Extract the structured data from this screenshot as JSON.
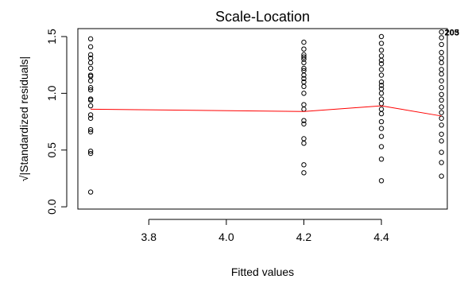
{
  "chart_data": {
    "type": "scatter",
    "title": "Scale-Location",
    "xlabel": "Fitted values",
    "ylabel": "√|Standardized residuals|",
    "xlim": [
      3.617,
      4.57
    ],
    "ylim": [
      -0.02,
      1.57
    ],
    "xticks": [
      "3.8",
      "4.0",
      "4.2",
      "4.4"
    ],
    "yticks": [
      "0.0",
      "0.5",
      "1.0",
      "1.5"
    ],
    "grid": false,
    "series": [
      {
        "x": [
          3.65,
          3.65,
          3.65,
          3.65,
          3.65,
          3.65,
          3.65,
          3.65,
          3.65,
          3.65,
          3.65,
          3.65,
          3.65,
          3.65,
          3.65,
          3.65,
          3.65,
          3.65,
          3.65,
          3.65,
          3.65,
          4.2,
          4.2,
          4.2,
          4.2,
          4.2,
          4.2,
          4.2,
          4.2,
          4.2,
          4.2,
          4.2,
          4.2,
          4.2,
          4.2,
          4.2,
          4.2,
          4.2,
          4.2,
          4.2,
          4.2,
          4.2,
          4.4,
          4.4,
          4.4,
          4.4,
          4.4,
          4.4,
          4.4,
          4.4,
          4.4,
          4.4,
          4.4,
          4.4,
          4.4,
          4.4,
          4.4,
          4.4,
          4.4,
          4.4,
          4.4,
          4.4,
          4.4,
          4.4,
          4.555,
          4.555,
          4.555,
          4.555,
          4.555,
          4.555,
          4.555,
          4.555,
          4.555,
          4.555,
          4.555,
          4.555,
          4.555,
          4.555,
          4.555,
          4.555,
          4.555,
          4.555,
          4.555,
          4.555,
          4.555
        ],
        "y": [
          1.48,
          1.41,
          1.34,
          1.31,
          1.27,
          1.22,
          1.16,
          1.15,
          1.11,
          1.05,
          1.03,
          0.95,
          0.94,
          0.89,
          0.81,
          0.78,
          0.68,
          0.66,
          0.49,
          0.47,
          0.13,
          1.45,
          1.39,
          1.34,
          1.3,
          1.27,
          1.2,
          1.16,
          1.1,
          1.06,
          1.0,
          0.9,
          0.86,
          0.76,
          0.73,
          0.6,
          0.56,
          0.37,
          0.3,
          1.32,
          1.22,
          1.13,
          1.5,
          1.44,
          1.38,
          1.33,
          1.26,
          1.21,
          1.16,
          1.1,
          1.04,
          1.0,
          0.95,
          0.91,
          0.86,
          0.82,
          0.75,
          0.69,
          0.62,
          0.53,
          0.42,
          0.23,
          1.29,
          1.07,
          1.54,
          1.49,
          1.43,
          1.36,
          1.31,
          1.27,
          1.21,
          1.17,
          1.11,
          1.05,
          0.99,
          0.94,
          0.88,
          0.83,
          0.78,
          0.72,
          0.64,
          0.58,
          0.48,
          0.39,
          0.27
        ]
      }
    ],
    "smooth_line": {
      "color": "#ff0000",
      "x": [
        3.65,
        4.2,
        4.4,
        4.555
      ],
      "y": [
        0.86,
        0.84,
        0.89,
        0.8
      ]
    },
    "annotations": [
      {
        "text": "205",
        "x": 4.555,
        "y": 1.54
      },
      {
        "text": "203",
        "x": 4.555,
        "y": 1.54
      }
    ]
  }
}
